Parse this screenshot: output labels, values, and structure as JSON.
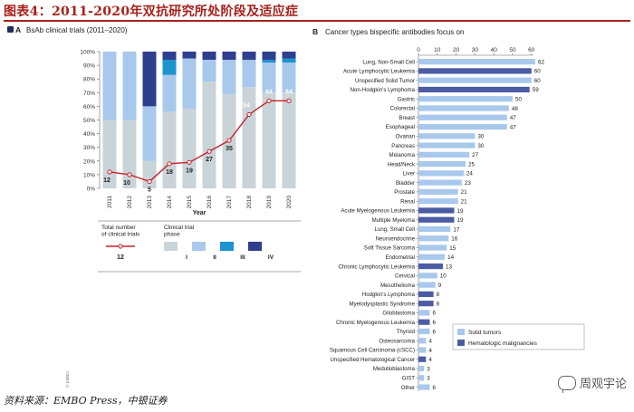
{
  "header": {
    "title": "图表4：2011-2020年双抗研究所处阶段及适应症",
    "source": "资料来源：EMBO Press，中银证券",
    "watermark": "周观宇论"
  },
  "chart_data": [
    {
      "type": "bar",
      "stacked": true,
      "panel_letter": "A",
      "title": "BsAb clinical trials (2011–2020)",
      "xlabel": "Year",
      "ylabel": "",
      "ylim": [
        0,
        100
      ],
      "yticks": [
        "0%",
        "10%",
        "20%",
        "30%",
        "40%",
        "50%",
        "60%",
        "70%",
        "80%",
        "90%",
        "100%"
      ],
      "categories": [
        "2011",
        "2012",
        "2013",
        "2014",
        "2015",
        "2016",
        "2017",
        "2018",
        "2019",
        "2020"
      ],
      "series": [
        {
          "name": "I",
          "color": "#c9d4d8",
          "values": [
            50,
            50,
            20,
            56,
            58,
            78,
            69,
            74,
            70,
            70
          ]
        },
        {
          "name": "II",
          "color": "#a8c8ec",
          "values": [
            50,
            50,
            40,
            27,
            37,
            16,
            25,
            20,
            22,
            22
          ]
        },
        {
          "name": "III",
          "color": "#1a93cf",
          "values": [
            0,
            0,
            0,
            11,
            0,
            0,
            0,
            0,
            2,
            3
          ]
        },
        {
          "name": "IV",
          "color": "#2e3f8f",
          "values": [
            0,
            0,
            40,
            6,
            5,
            6,
            6,
            6,
            6,
            5
          ]
        }
      ],
      "line": {
        "name": "Total number of clinical trials",
        "color": "#c8202a",
        "values": [
          12,
          10,
          5,
          18,
          19,
          27,
          35,
          54,
          64,
          64
        ]
      },
      "legend": {
        "line_title": "Total number of clinical trials",
        "line_sample": "12",
        "phase_title": "Clinical trial phase"
      },
      "credit": "© EMBO"
    },
    {
      "type": "bar",
      "orientation": "horizontal",
      "panel_letter": "B",
      "title": "Cancer types bispecific antibodies focus on",
      "xlim": [
        0,
        60
      ],
      "xticks": [
        "0",
        "10",
        "20",
        "30",
        "40",
        "50",
        "60"
      ],
      "categories": [
        "Lung, Non-Small Cell",
        "Acute Lymphocytic Leukemia",
        "Unspecified Solid Tumor",
        "Non-Hodgkin's Lymphoma",
        "Gastric",
        "Colorectal",
        "Breast",
        "Esophageal",
        "Ovarian",
        "Pancreas",
        "Melanoma",
        "Head/Neck",
        "Liver",
        "Bladder",
        "Prostate",
        "Renal",
        "Acute Myelogenous Leukemia",
        "Multiple Myeloma",
        "Lung, Small Cell",
        "Neuroendocrine",
        "Soft Tissue Sarcoma",
        "Endometrial",
        "Chronic Lymphocytic Leukemia",
        "Cervical",
        "Mesothelioma",
        "Hodgkin's Lymphoma",
        "Myelodysplastic Syndrome",
        "Glioblastoma",
        "Chronic Myelogenous Leukemia",
        "Thyroid",
        "Osteosarcoma",
        "Squamous Cell Carcinoma (cSCC)",
        "Unspecified Hematological Cancer",
        "Medulloblastoma",
        "GIST",
        "Other"
      ],
      "values": [
        62,
        60,
        60,
        59,
        50,
        48,
        47,
        47,
        30,
        30,
        27,
        25,
        24,
        23,
        21,
        21,
        19,
        19,
        17,
        16,
        15,
        14,
        13,
        10,
        9,
        8,
        8,
        6,
        6,
        6,
        4,
        4,
        4,
        3,
        3,
        6
      ],
      "groups": [
        "solid",
        "heme",
        "solid",
        "heme",
        "solid",
        "solid",
        "solid",
        "solid",
        "solid",
        "solid",
        "solid",
        "solid",
        "solid",
        "solid",
        "solid",
        "solid",
        "heme",
        "heme",
        "solid",
        "solid",
        "solid",
        "solid",
        "heme",
        "solid",
        "solid",
        "heme",
        "heme",
        "solid",
        "heme",
        "solid",
        "solid",
        "solid",
        "heme",
        "solid",
        "solid",
        "solid"
      ],
      "legend": [
        {
          "key": "solid",
          "label": "Solid tumors",
          "color": "#a8c8ec"
        },
        {
          "key": "heme",
          "label": "Hematologic malignancies",
          "color": "#4b5ca5"
        }
      ]
    }
  ]
}
